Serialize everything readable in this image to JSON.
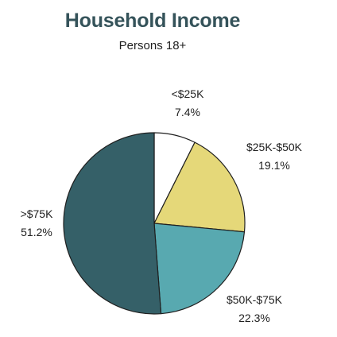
{
  "chart_data": {
    "type": "pie",
    "title": "Household Income",
    "subtitle": "Persons 18+",
    "slices": [
      {
        "label": "<$25K",
        "value": 7.4,
        "value_text": "7.4%",
        "color": "#ffffff"
      },
      {
        "label": "$25K-$50K",
        "value": 19.1,
        "value_text": "19.1%",
        "color": "#e5d879"
      },
      {
        "label": "$50K-$75K",
        "value": 22.3,
        "value_text": "22.3%",
        "color": "#58a9b0"
      },
      {
        "label": ">$75K",
        "value": 51.2,
        "value_text": "51.2%",
        "color": "#356068"
      }
    ],
    "start_angle_deg": 0,
    "direction": "clockwise",
    "edge_color": "#1f1f1f"
  }
}
